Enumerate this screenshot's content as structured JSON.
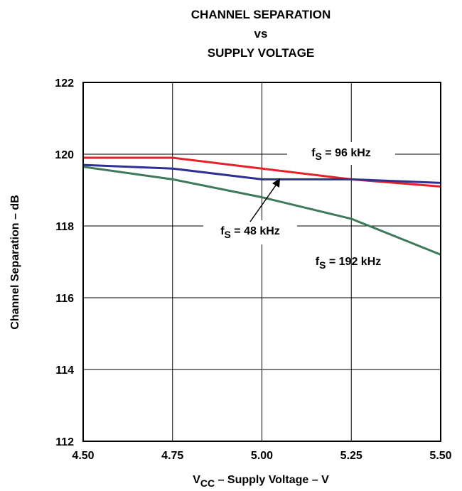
{
  "chart_data": {
    "type": "line",
    "title_lines": [
      "CHANNEL SEPARATION",
      "vs",
      "SUPPLY VOLTAGE"
    ],
    "xlabel": {
      "prefix": "V",
      "sub": "CC",
      "suffix": " – Supply Voltage – V"
    },
    "ylabel": "Channel Separation – dB",
    "xlim": [
      4.5,
      5.5
    ],
    "ylim": [
      112,
      122
    ],
    "x_ticks": [
      "4.50",
      "4.75",
      "5.00",
      "5.25",
      "5.50"
    ],
    "y_ticks": [
      "112",
      "114",
      "116",
      "118",
      "120",
      "122"
    ],
    "grid": true,
    "x": [
      4.5,
      4.75,
      5.0,
      5.25,
      5.5
    ],
    "series": [
      {
        "name": "fS = 96 kHz",
        "color": "#e8202a",
        "values": [
          119.9,
          119.9,
          119.6,
          119.3,
          119.1
        ]
      },
      {
        "name": "fS = 48 kHz",
        "color": "#2e3192",
        "values": [
          119.7,
          119.6,
          119.3,
          119.3,
          119.2
        ]
      },
      {
        "name": "fS = 192 kHz",
        "color": "#3d7a5a",
        "values": [
          119.65,
          119.3,
          118.8,
          118.2,
          117.2
        ]
      }
    ],
    "annotations": [
      {
        "f": "f",
        "sub": "S",
        "text": " = 96 kHz",
        "series": 0
      },
      {
        "f": "f",
        "sub": "S",
        "text": " = 48 kHz",
        "series": 1
      },
      {
        "f": "f",
        "sub": "S",
        "text": " = 192 kHz",
        "series": 2
      }
    ]
  }
}
